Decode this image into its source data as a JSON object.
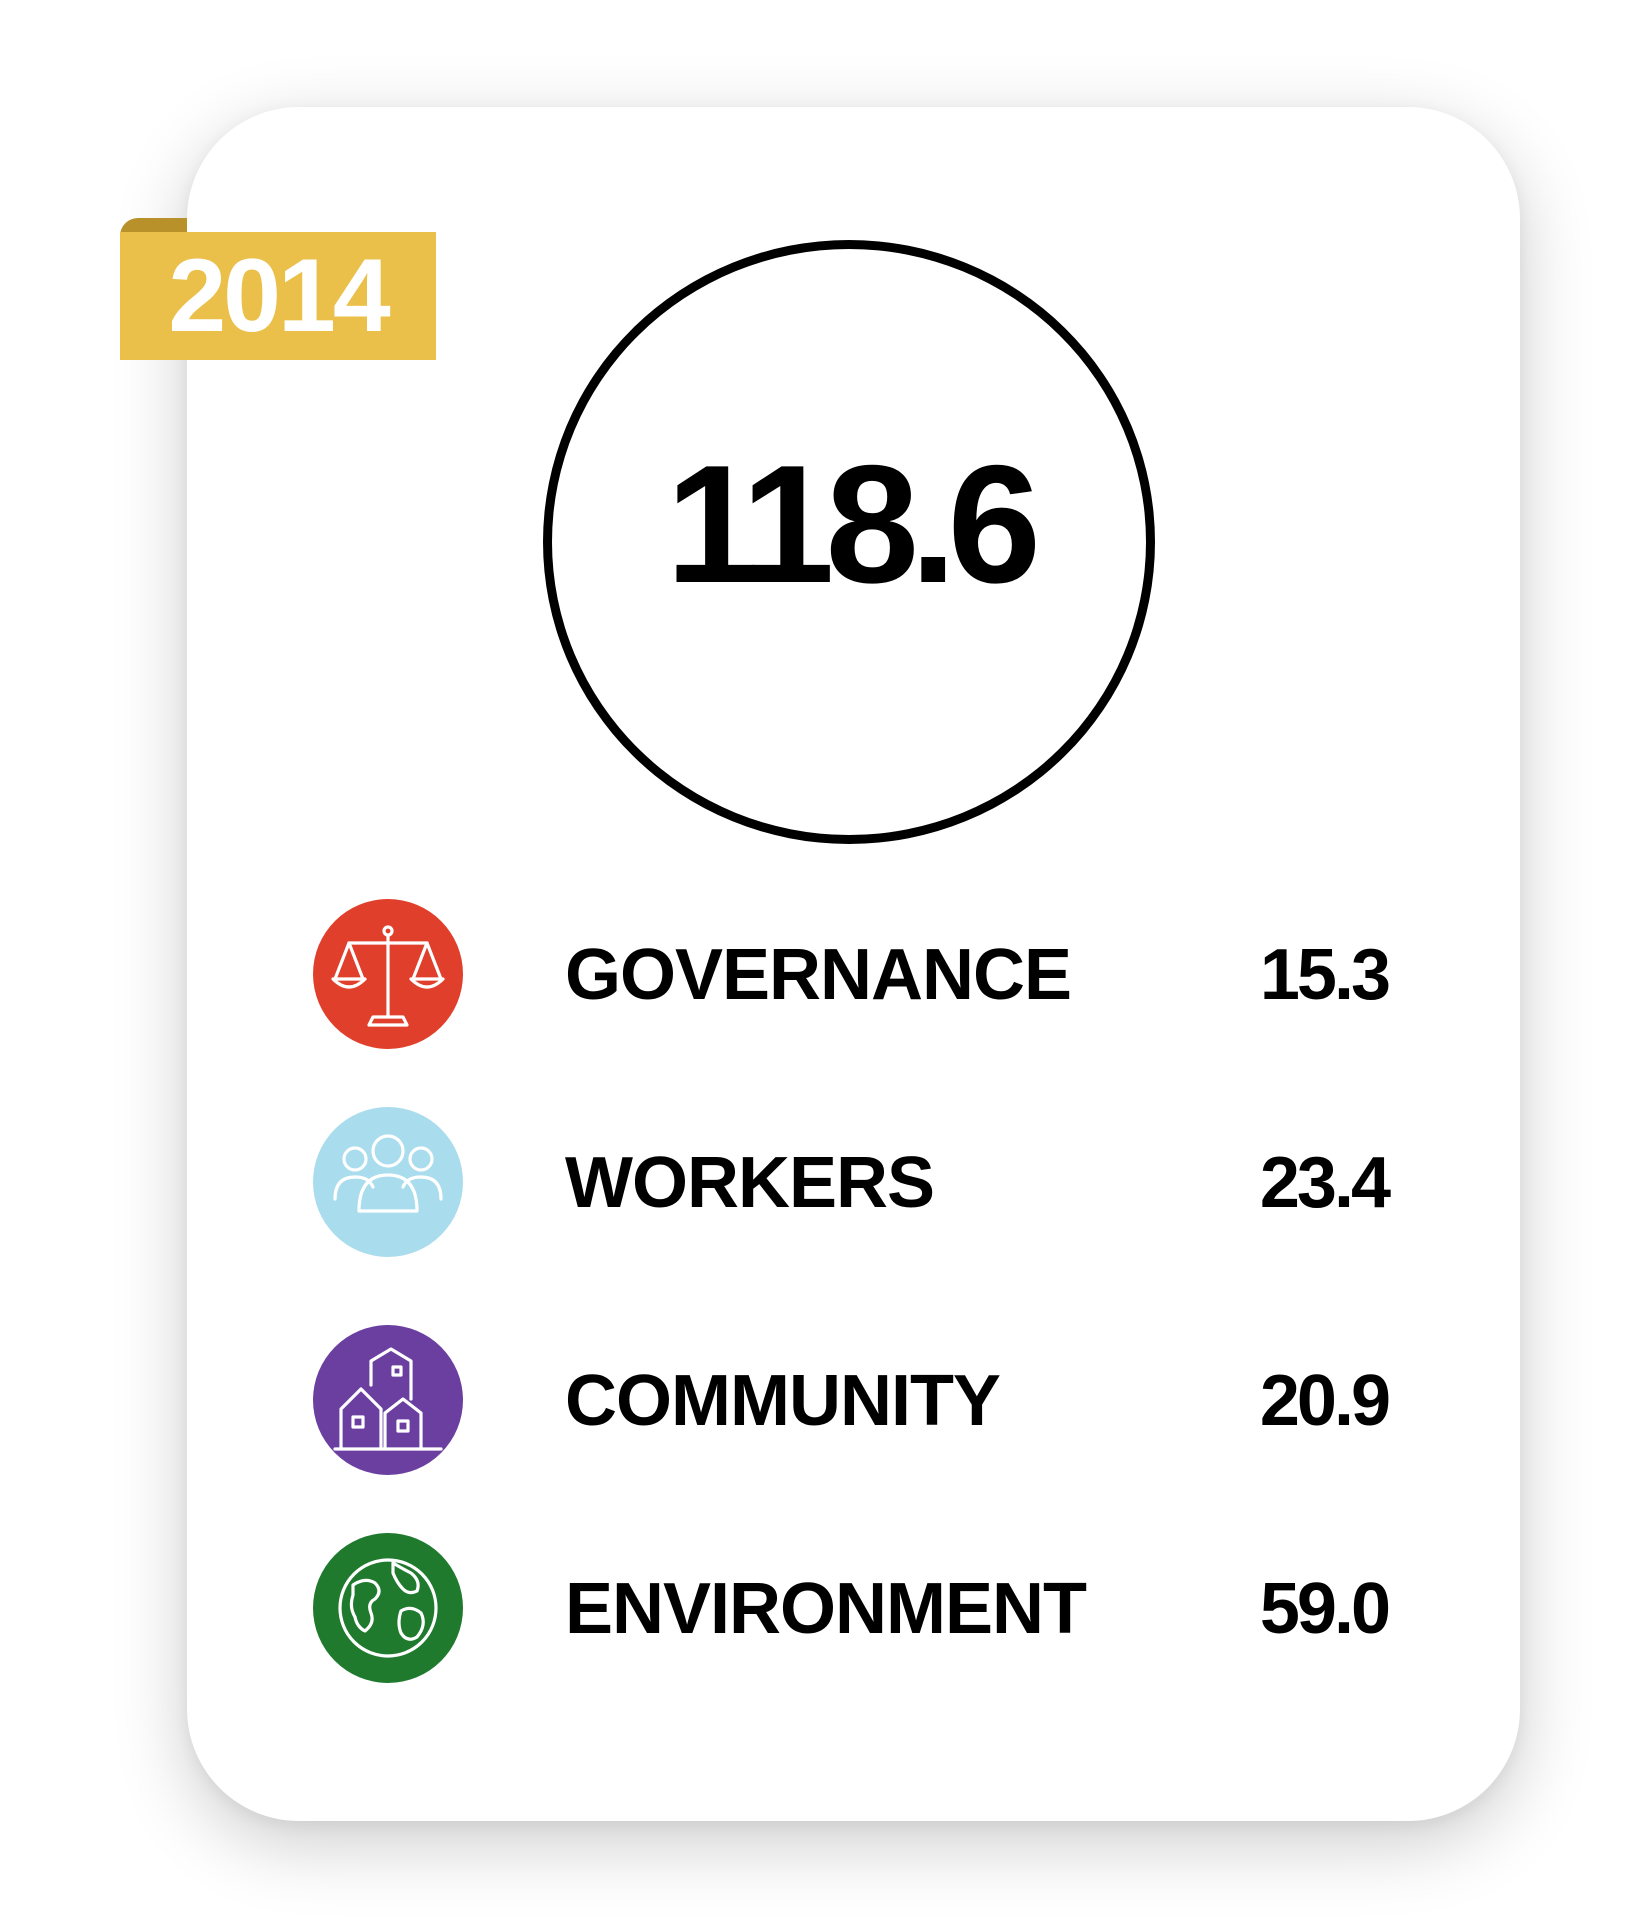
{
  "badge": {
    "year": "2014",
    "color": "#ebc04a"
  },
  "score": {
    "value": "118.6"
  },
  "categories": [
    {
      "label": "GOVERNANCE",
      "value": "15.3",
      "icon": "scales-icon",
      "color": "#e0402b"
    },
    {
      "label": "WORKERS",
      "value": "23.4",
      "icon": "people-icon",
      "color": "#a9dcec"
    },
    {
      "label": "COMMUNITY",
      "value": "20.9",
      "icon": "buildings-icon",
      "color": "#6b3fa0"
    },
    {
      "label": "ENVIRONMENT",
      "value": "59.0",
      "icon": "globe-icon",
      "color": "#1f7a2e"
    }
  ]
}
